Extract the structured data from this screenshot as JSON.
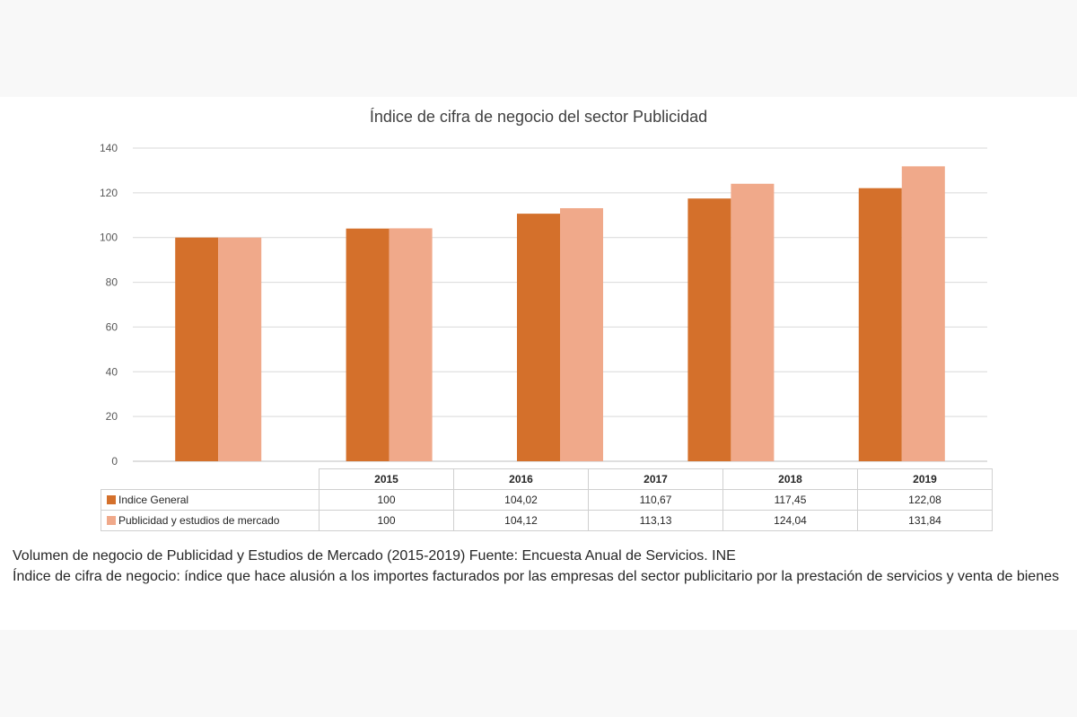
{
  "chart_data": {
    "type": "bar",
    "title": "Índice de cifra de negocio del sector Publicidad",
    "categories": [
      "2015",
      "2016",
      "2017",
      "2018",
      "2019"
    ],
    "series": [
      {
        "name": "Indice General",
        "values": [
          100,
          104.02,
          110.67,
          117.45,
          122.08
        ],
        "labels": [
          "100",
          "104,02",
          "110,67",
          "117,45",
          "122,08"
        ],
        "color": "#d4702b"
      },
      {
        "name": "Publicidad y estudios de mercado",
        "values": [
          100,
          104.12,
          113.13,
          124.04,
          131.84
        ],
        "labels": [
          "100",
          "104,12",
          "113,13",
          "124,04",
          "131,84"
        ],
        "color": "#f0a98a"
      }
    ],
    "ylim": [
      0,
      140
    ],
    "yticks": [
      0,
      20,
      40,
      60,
      80,
      100,
      120,
      140
    ],
    "grid": true,
    "legend": "data-table below chart"
  },
  "caption": {
    "line1": "Volumen de negocio de Publicidad y Estudios de Mercado (2015-2019) Fuente: Encuesta Anual de Servicios. INE",
    "line2": "Índice de cifra de negocio: índice que hace alusión a los importes facturados por las empresas del sector publicitario por la prestación de servicios y venta de bienes"
  }
}
